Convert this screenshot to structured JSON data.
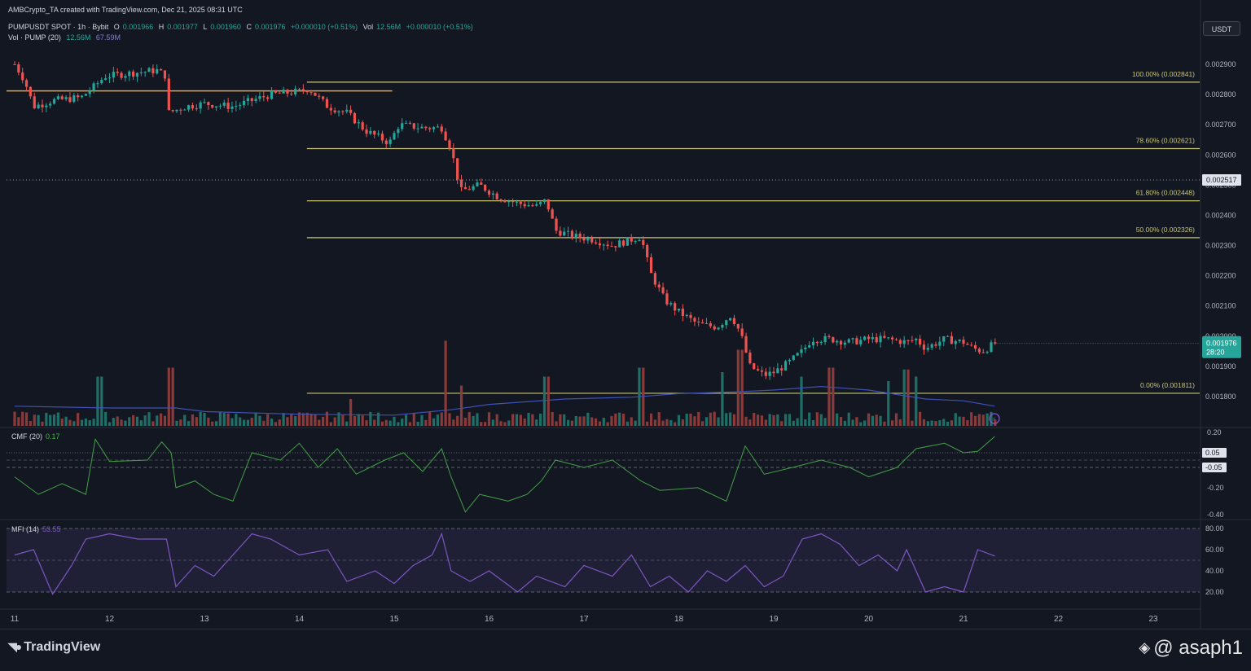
{
  "header": {
    "credit": "AMBCrypto_TA created with TradingView.com, Dec 21, 2025 08:31 UTC",
    "symbol": "PUMPUSDT SPOT · 1h · Bybit",
    "o_label": "O",
    "o_value": "0.001966",
    "h_label": "H",
    "h_value": "0.001977",
    "l_label": "L",
    "l_value": "0.001960",
    "c_label": "C",
    "c_value": "0.001976",
    "change": "+0.000010 (+0.51%)",
    "vol_label": "Vol",
    "vol_value": "12.56M",
    "vol_change": "+0.000010 (+0.51%)",
    "vol_indicator": "Vol · PUMP (20)",
    "vol_current": "12.56M",
    "vol_ma": "67.59M"
  },
  "currency_button": "USDT",
  "price_labels": {
    "last_price": "0.001976",
    "countdown": "28:20",
    "marker_price": "0.002517"
  },
  "indicators": {
    "cmf_name": "CMF (20)",
    "cmf_value": "0.17",
    "mfi_name": "MFI (14)",
    "mfi_value": "53.55"
  },
  "colors": {
    "up": "#26a69a",
    "down": "#ef5350",
    "fib": "#c7c47a",
    "support": "#e9a23b",
    "cmf": "#43a047",
    "mfi": "#7e57c2",
    "vol_ma": "#3f51b5"
  },
  "footer": {
    "brand": "TradingView",
    "watermark": "@ asaph1"
  },
  "chart_data": [
    {
      "type": "candlestick",
      "timeframe": "1h",
      "x_tick_labels": [
        "11",
        "12",
        "13",
        "14",
        "15",
        "16",
        "17",
        "18",
        "19",
        "20",
        "21",
        "22",
        "23"
      ],
      "y_tick_labels": [
        "0.002900",
        "0.002800",
        "0.002700",
        "0.002600",
        "0.002500",
        "0.002400",
        "0.002300",
        "0.002200",
        "0.002100",
        "0.002000",
        "0.001900",
        "0.001800"
      ],
      "ylim": [
        0.00172,
        0.00296
      ],
      "price_path": [
        [
          11.0,
          0.0029
        ],
        [
          11.1,
          0.00285
        ],
        [
          11.2,
          0.00276
        ],
        [
          11.4,
          0.00278
        ],
        [
          11.7,
          0.00279
        ],
        [
          11.85,
          0.00283
        ],
        [
          11.95,
          0.00286
        ],
        [
          12.2,
          0.00287
        ],
        [
          12.5,
          0.00288
        ],
        [
          12.6,
          0.00286
        ],
        [
          12.62,
          0.00274
        ],
        [
          12.8,
          0.00276
        ],
        [
          13.0,
          0.00277
        ],
        [
          13.3,
          0.00276
        ],
        [
          13.5,
          0.00278
        ],
        [
          13.7,
          0.0028
        ],
        [
          14.0,
          0.00281
        ],
        [
          14.1,
          0.00282
        ],
        [
          14.3,
          0.00276
        ],
        [
          14.5,
          0.00274
        ],
        [
          14.7,
          0.00268
        ],
        [
          14.95,
          0.00264
        ],
        [
          15.05,
          0.0027
        ],
        [
          15.3,
          0.00269
        ],
        [
          15.5,
          0.00269
        ],
        [
          15.6,
          0.00262
        ],
        [
          15.7,
          0.00248
        ],
        [
          15.9,
          0.0025
        ],
        [
          16.1,
          0.00246
        ],
        [
          16.3,
          0.00244
        ],
        [
          16.5,
          0.00243
        ],
        [
          16.6,
          0.00245
        ],
        [
          16.7,
          0.00235
        ],
        [
          16.9,
          0.00233
        ],
        [
          17.1,
          0.00232
        ],
        [
          17.3,
          0.0023
        ],
        [
          17.5,
          0.00232
        ],
        [
          17.6,
          0.00233
        ],
        [
          17.7,
          0.00221
        ],
        [
          17.85,
          0.00212
        ],
        [
          18.0,
          0.00208
        ],
        [
          18.2,
          0.00204
        ],
        [
          18.4,
          0.00203
        ],
        [
          18.55,
          0.00207
        ],
        [
          18.65,
          0.00201
        ],
        [
          18.75,
          0.0019
        ],
        [
          18.9,
          0.00187
        ],
        [
          19.0,
          0.00188
        ],
        [
          19.15,
          0.00191
        ],
        [
          19.3,
          0.00195
        ],
        [
          19.4,
          0.00199
        ],
        [
          19.6,
          0.00199
        ],
        [
          19.8,
          0.00198
        ],
        [
          20.0,
          0.00199
        ],
        [
          20.2,
          0.00199
        ],
        [
          20.4,
          0.00198
        ],
        [
          20.5,
          0.00199
        ],
        [
          20.6,
          0.00196
        ],
        [
          20.8,
          0.00199
        ],
        [
          21.0,
          0.00198
        ],
        [
          21.1,
          0.00196
        ],
        [
          21.2,
          0.00195
        ],
        [
          21.33,
          0.001976
        ]
      ],
      "fibonacci_levels": [
        {
          "label": "100.00% (0.002841)",
          "value": 0.002841
        },
        {
          "label": "78.60% (0.002621)",
          "value": 0.002621
        },
        {
          "label": "61.80% (0.002448)",
          "value": 0.002448
        },
        {
          "label": "50.00% (0.002326)",
          "value": 0.002326
        },
        {
          "label": "0.00% (0.001811)",
          "value": 0.001811
        }
      ],
      "fib_start_x": 14.08,
      "horizontal_line": {
        "value": 0.002812,
        "x_start": 11.0,
        "x_end": 14.98
      },
      "dotted_line": {
        "value": 0.002517
      },
      "last_price": 0.001976
    },
    {
      "type": "bar",
      "name": "Vol · PUMP (20)",
      "x_range": [
        11.0,
        21.33
      ],
      "volume_spikes": [
        [
          11.9,
          0.55
        ],
        [
          12.65,
          0.65
        ],
        [
          14.55,
          0.3
        ],
        [
          15.55,
          0.95
        ],
        [
          15.7,
          0.45
        ],
        [
          16.6,
          0.55
        ],
        [
          17.6,
          0.65
        ],
        [
          18.45,
          0.6
        ],
        [
          18.65,
          0.85
        ],
        [
          19.3,
          0.55
        ],
        [
          19.6,
          0.65
        ],
        [
          20.2,
          0.5
        ],
        [
          20.4,
          0.63
        ],
        [
          20.5,
          0.55
        ]
      ],
      "ma_path": [
        [
          11.0,
          0.22
        ],
        [
          12.0,
          0.2
        ],
        [
          12.7,
          0.2
        ],
        [
          13.0,
          0.16
        ],
        [
          14.0,
          0.13
        ],
        [
          15.0,
          0.12
        ],
        [
          15.6,
          0.18
        ],
        [
          16.0,
          0.24
        ],
        [
          16.8,
          0.3
        ],
        [
          17.5,
          0.32
        ],
        [
          18.0,
          0.36
        ],
        [
          18.6,
          0.38
        ],
        [
          19.0,
          0.4
        ],
        [
          19.5,
          0.44
        ],
        [
          20.0,
          0.4
        ],
        [
          20.6,
          0.3
        ],
        [
          21.0,
          0.28
        ],
        [
          21.33,
          0.22
        ]
      ]
    },
    {
      "type": "line",
      "name": "CMF (20)",
      "y_tick_labels": [
        "0.20",
        "0.05",
        "-0.05",
        "-0.20",
        "-0.40"
      ],
      "ylim": [
        -0.42,
        0.22
      ],
      "reference_lines": [
        0.05,
        -0.05
      ],
      "value_labels": [
        "0.05",
        "-0.05"
      ],
      "points": [
        [
          11.0,
          -0.12
        ],
        [
          11.25,
          -0.25
        ],
        [
          11.5,
          -0.17
        ],
        [
          11.75,
          -0.25
        ],
        [
          11.85,
          0.15
        ],
        [
          12.0,
          -0.01
        ],
        [
          12.4,
          0.0
        ],
        [
          12.55,
          0.13
        ],
        [
          12.65,
          0.05
        ],
        [
          12.7,
          -0.2
        ],
        [
          12.9,
          -0.15
        ],
        [
          13.1,
          -0.25
        ],
        [
          13.3,
          -0.3
        ],
        [
          13.5,
          0.05
        ],
        [
          13.8,
          0.0
        ],
        [
          14.0,
          0.12
        ],
        [
          14.2,
          -0.05
        ],
        [
          14.4,
          0.08
        ],
        [
          14.6,
          -0.1
        ],
        [
          14.9,
          0.0
        ],
        [
          15.1,
          0.05
        ],
        [
          15.3,
          -0.08
        ],
        [
          15.5,
          0.08
        ],
        [
          15.6,
          -0.12
        ],
        [
          15.75,
          -0.38
        ],
        [
          15.9,
          -0.25
        ],
        [
          16.2,
          -0.3
        ],
        [
          16.4,
          -0.25
        ],
        [
          16.55,
          -0.15
        ],
        [
          16.7,
          0.0
        ],
        [
          17.0,
          -0.05
        ],
        [
          17.3,
          0.0
        ],
        [
          17.6,
          -0.15
        ],
        [
          17.8,
          -0.22
        ],
        [
          18.2,
          -0.2
        ],
        [
          18.5,
          -0.3
        ],
        [
          18.7,
          0.1
        ],
        [
          18.9,
          -0.1
        ],
        [
          19.2,
          -0.05
        ],
        [
          19.5,
          0.0
        ],
        [
          19.8,
          -0.05
        ],
        [
          20.0,
          -0.12
        ],
        [
          20.3,
          -0.05
        ],
        [
          20.5,
          0.08
        ],
        [
          20.8,
          0.12
        ],
        [
          21.0,
          0.05
        ],
        [
          21.15,
          0.06
        ],
        [
          21.33,
          0.17
        ]
      ]
    },
    {
      "type": "line",
      "name": "MFI (14)",
      "y_tick_labels": [
        "80.00",
        "60.00",
        "40.00",
        "20.00"
      ],
      "ylim": [
        10,
        82
      ],
      "band": [
        20,
        80
      ],
      "points": [
        [
          11.0,
          55
        ],
        [
          11.2,
          60
        ],
        [
          11.4,
          18
        ],
        [
          11.6,
          45
        ],
        [
          11.75,
          70
        ],
        [
          12.0,
          75
        ],
        [
          12.3,
          70
        ],
        [
          12.6,
          70
        ],
        [
          12.7,
          25
        ],
        [
          12.9,
          45
        ],
        [
          13.1,
          35
        ],
        [
          13.3,
          55
        ],
        [
          13.5,
          75
        ],
        [
          13.7,
          70
        ],
        [
          14.0,
          55
        ],
        [
          14.3,
          60
        ],
        [
          14.5,
          30
        ],
        [
          14.8,
          40
        ],
        [
          15.0,
          28
        ],
        [
          15.2,
          45
        ],
        [
          15.4,
          55
        ],
        [
          15.5,
          75
        ],
        [
          15.6,
          40
        ],
        [
          15.8,
          30
        ],
        [
          16.0,
          40
        ],
        [
          16.3,
          20
        ],
        [
          16.5,
          35
        ],
        [
          16.8,
          25
        ],
        [
          17.0,
          45
        ],
        [
          17.3,
          35
        ],
        [
          17.5,
          55
        ],
        [
          17.7,
          25
        ],
        [
          17.9,
          35
        ],
        [
          18.1,
          20
        ],
        [
          18.3,
          40
        ],
        [
          18.5,
          30
        ],
        [
          18.7,
          45
        ],
        [
          18.9,
          25
        ],
        [
          19.1,
          35
        ],
        [
          19.3,
          70
        ],
        [
          19.5,
          75
        ],
        [
          19.7,
          65
        ],
        [
          19.9,
          45
        ],
        [
          20.1,
          55
        ],
        [
          20.3,
          40
        ],
        [
          20.4,
          60
        ],
        [
          20.6,
          20
        ],
        [
          20.8,
          25
        ],
        [
          21.0,
          20
        ],
        [
          21.15,
          60
        ],
        [
          21.33,
          54
        ]
      ]
    }
  ]
}
